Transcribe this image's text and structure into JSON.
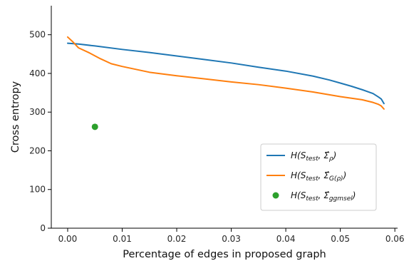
{
  "chart_data": {
    "type": "line",
    "title": "",
    "xlabel": "Percentage of edges in proposed graph",
    "ylabel": "Cross entropy",
    "xlim": [
      -0.003,
      0.0605
    ],
    "ylim": [
      0,
      575
    ],
    "xticks": [
      0.0,
      0.01,
      0.02,
      0.03,
      0.04,
      0.05,
      0.06
    ],
    "xtick_labels": [
      "0.00",
      "0.01",
      "0.02",
      "0.03",
      "0.04",
      "0.05",
      "0.06"
    ],
    "yticks": [
      0,
      100,
      200,
      300,
      400,
      500
    ],
    "ytick_labels": [
      "0",
      "100",
      "200",
      "300",
      "400",
      "500"
    ],
    "grid": false,
    "legend_position": "lower-right",
    "series": [
      {
        "name": "H(S_test, Σ̂_ρ)",
        "color": "#1f77b4",
        "type": "line",
        "x": [
          0.0,
          0.002,
          0.005,
          0.01,
          0.015,
          0.02,
          0.025,
          0.03,
          0.035,
          0.04,
          0.045,
          0.048,
          0.05,
          0.052,
          0.054,
          0.056,
          0.057,
          0.0575,
          0.058
        ],
        "y": [
          478,
          476,
          471,
          462,
          454,
          445,
          436,
          427,
          416,
          406,
          393,
          383,
          375,
          367,
          358,
          348,
          339,
          334,
          322
        ]
      },
      {
        "name": "H(S_test, Σ̂_G(ρ))",
        "color": "#ff7f0e",
        "type": "line",
        "x": [
          0.0,
          0.001,
          0.002,
          0.004,
          0.006,
          0.008,
          0.01,
          0.015,
          0.02,
          0.025,
          0.03,
          0.035,
          0.04,
          0.045,
          0.05,
          0.054,
          0.056,
          0.057,
          0.0575,
          0.058
        ],
        "y": [
          494,
          481,
          466,
          453,
          438,
          425,
          418,
          403,
          394,
          386,
          378,
          371,
          362,
          352,
          340,
          332,
          325,
          320,
          316,
          308
        ]
      },
      {
        "name": "H(S_test, Σ̂_ggmsel)",
        "color": "#2ca02c",
        "type": "scatter",
        "x": [
          0.005
        ],
        "y": [
          262
        ]
      }
    ]
  },
  "legend": {
    "entries": [
      {
        "main": "H(S",
        "sub1": "test",
        "mid": ", Σ̂",
        "sub2": "ρ",
        "end": ")"
      },
      {
        "main": "H(S",
        "sub1": "test",
        "mid": ", Σ̂",
        "sub2": "G(ρ)",
        "end": ")"
      },
      {
        "main": "H(S",
        "sub1": "test",
        "mid": ", Σ̂",
        "sub2": "ggmsel",
        "end": ")"
      }
    ]
  }
}
